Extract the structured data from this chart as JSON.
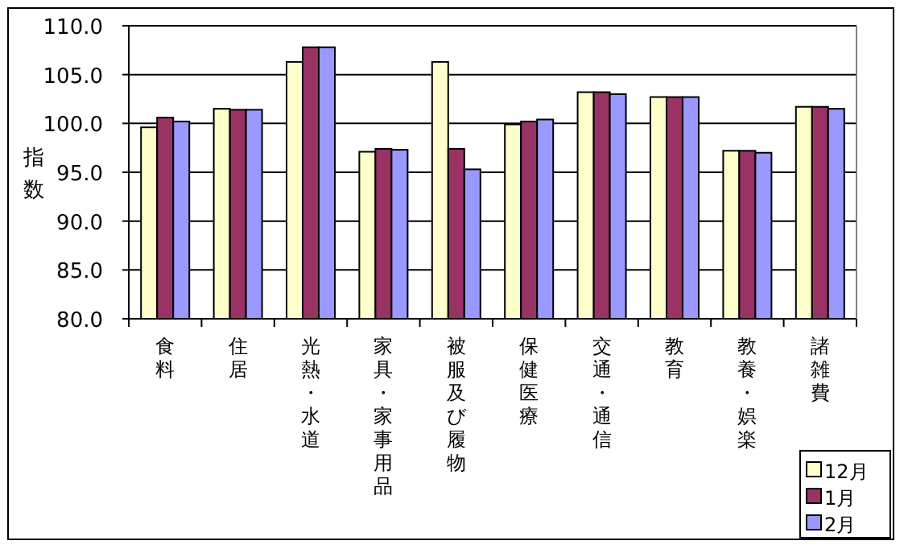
{
  "chart_data": {
    "type": "bar",
    "ylabel": "指数",
    "categories": [
      "食料",
      "住居",
      "光熱・水道",
      "家具・家事用品",
      "被服及び履物",
      "保健医療",
      "交通・通信",
      "教育",
      "教養・娯楽",
      "諸雑費"
    ],
    "series": [
      {
        "name": "12月",
        "color": "#ffffcc",
        "values": [
          99.6,
          101.5,
          106.3,
          97.1,
          106.3,
          99.9,
          103.2,
          102.7,
          97.2,
          101.7
        ]
      },
      {
        "name": "1月",
        "color": "#993366",
        "values": [
          100.6,
          101.4,
          107.8,
          97.4,
          97.4,
          100.2,
          103.2,
          102.7,
          97.2,
          101.7
        ]
      },
      {
        "name": "2月",
        "color": "#9999ff",
        "values": [
          100.2,
          101.4,
          107.8,
          97.3,
          95.3,
          100.4,
          103.0,
          102.7,
          97.0,
          101.5
        ]
      }
    ],
    "ylim": [
      80,
      110
    ],
    "yticks": [
      {
        "value": 80,
        "label": "80.0"
      },
      {
        "value": 85,
        "label": "85.0"
      },
      {
        "value": 90,
        "label": "90.0"
      },
      {
        "value": 95,
        "label": "95.0"
      },
      {
        "value": 100,
        "label": "100.0"
      },
      {
        "value": 105,
        "label": "105.0"
      },
      {
        "value": 110,
        "label": "110.0"
      }
    ],
    "grid": "y",
    "legend": "bottom right"
  }
}
